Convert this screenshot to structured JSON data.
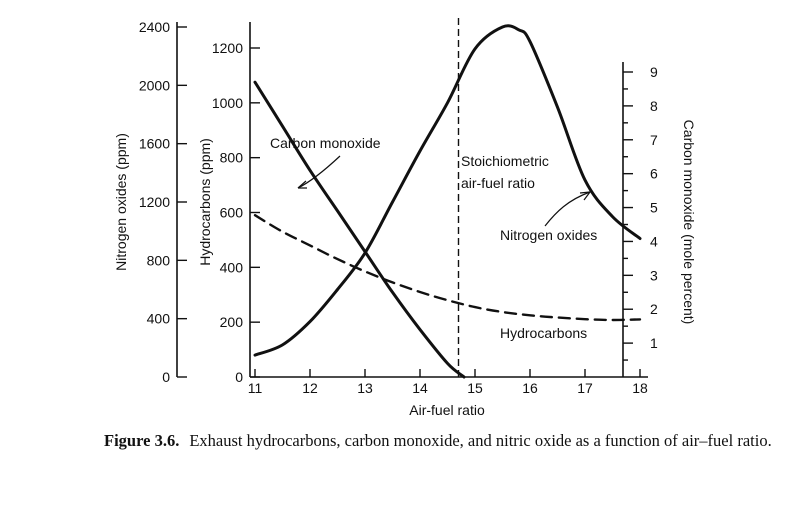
{
  "chart_data": {
    "type": "line",
    "xlabel": "Air-fuel ratio",
    "xlim": [
      10.9,
      18.1
    ],
    "x_ticks": [
      11,
      12,
      13,
      14,
      15,
      16,
      17,
      18
    ],
    "axes": [
      {
        "id": "nox",
        "label": "Nitrogen oxides (ppm)",
        "side": "left-outer",
        "ylim": [
          0,
          2400
        ],
        "ticks": [
          0,
          400,
          800,
          1200,
          1600,
          2000,
          2400
        ]
      },
      {
        "id": "hc",
        "label": "Hydrocarbons (ppm)",
        "side": "left-inner",
        "ylim": [
          0,
          1200
        ],
        "ticks": [
          0,
          200,
          400,
          600,
          800,
          1000,
          1200
        ]
      },
      {
        "id": "co",
        "label": "Carbon monoxide (mole percent)",
        "side": "right",
        "ylim": [
          0,
          9
        ],
        "ticks": [
          1,
          2,
          3,
          4,
          5,
          6,
          7,
          8,
          9
        ]
      }
    ],
    "series": [
      {
        "name": "Carbon monoxide",
        "axis": "co",
        "style": "solid",
        "x": [
          11,
          11.5,
          12,
          12.5,
          13,
          13.5,
          14,
          14.5,
          14.8
        ],
        "y": [
          8.7,
          7.4,
          6.1,
          4.9,
          3.7,
          2.5,
          1.4,
          0.4,
          0
        ]
      },
      {
        "name": "Nitrogen oxides",
        "axis": "nox",
        "style": "solid",
        "x": [
          11,
          11.5,
          12,
          12.5,
          13,
          13.5,
          14,
          14.5,
          15,
          15.5,
          15.8,
          16,
          16.5,
          17,
          17.5,
          18
        ],
        "y": [
          150,
          220,
          380,
          600,
          850,
          1200,
          1550,
          1880,
          2250,
          2400,
          2380,
          2300,
          1850,
          1350,
          1100,
          950
        ]
      },
      {
        "name": "Hydrocarbons",
        "axis": "hc",
        "style": "dashed",
        "x": [
          11,
          11.5,
          12,
          12.5,
          13,
          13.5,
          14,
          14.5,
          15,
          15.5,
          16,
          16.5,
          17,
          17.5,
          18
        ],
        "y": [
          590,
          530,
          480,
          430,
          385,
          345,
          310,
          280,
          255,
          237,
          225,
          217,
          211,
          208,
          210
        ]
      }
    ],
    "reference_line": {
      "x": 14.7,
      "label": [
        "Stoichiometric",
        "air-fuel ratio"
      ]
    },
    "annotations": [
      {
        "text": "Carbon monoxide"
      },
      {
        "text": "Nitrogen oxides"
      },
      {
        "text": "Hydrocarbons"
      }
    ],
    "grid": false
  },
  "caption": {
    "label": "Figure 3.6.",
    "text": "Exhaust hydrocarbons, carbon monoxide, and nitric oxide as a function of air–fuel ratio."
  }
}
